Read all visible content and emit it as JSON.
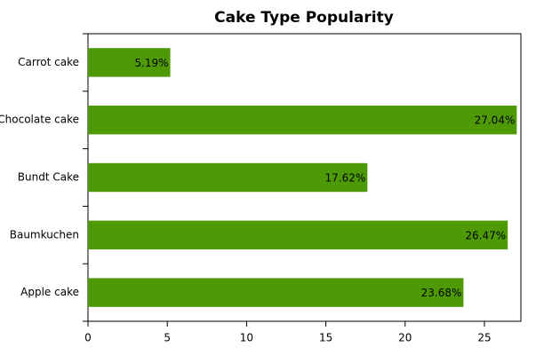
{
  "chart_data": {
    "type": "barh",
    "title": "Cake Type Popularity",
    "categories": [
      "Carrot cake",
      "Chocolate cake",
      "Bundt Cake",
      "Baumkuchen",
      "Apple cake"
    ],
    "values": [
      5.19,
      27.04,
      17.62,
      26.47,
      23.68
    ],
    "value_labels": [
      "5.19%",
      "27.04%",
      "17.62%",
      "26.47%",
      "23.68%"
    ],
    "color": "#4e9a06",
    "xlim": [
      0,
      27.3
    ],
    "xticks": [
      0,
      5,
      10,
      15,
      20,
      25
    ]
  }
}
